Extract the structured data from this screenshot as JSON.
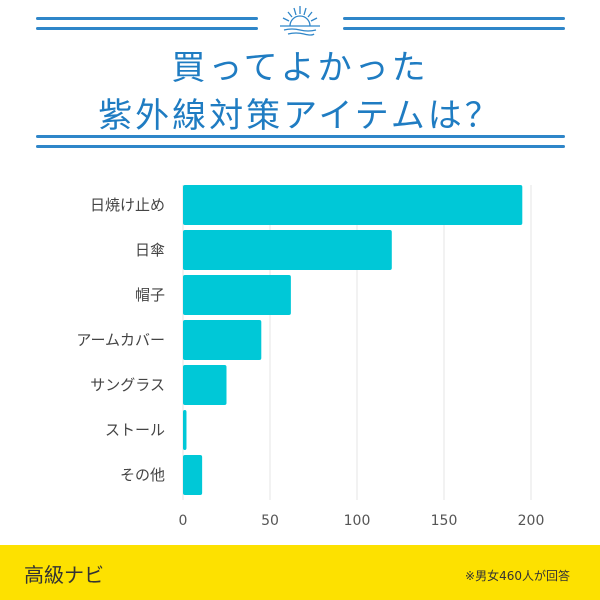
{
  "header": {
    "title_line1": "買ってよかった",
    "title_line2": "紫外線対策アイテムは？",
    "icon": "sun-over-waves-icon"
  },
  "footer": {
    "brand": "高級ナビ",
    "note": "※男女460人が回答",
    "background": "#fde100"
  },
  "chart_data": {
    "type": "bar",
    "orientation": "horizontal",
    "categories": [
      "日焼け止め",
      "日傘",
      "帽子",
      "アームカバー",
      "サングラス",
      "ストール",
      "その他"
    ],
    "values": [
      195,
      120,
      62,
      45,
      25,
      2,
      11
    ],
    "xlim": [
      0,
      200
    ],
    "xticks": [
      "0",
      "50",
      "100",
      "150",
      "200"
    ],
    "grid": true,
    "bar_color": "#00c8d7",
    "title": "",
    "xlabel": "",
    "ylabel": ""
  }
}
